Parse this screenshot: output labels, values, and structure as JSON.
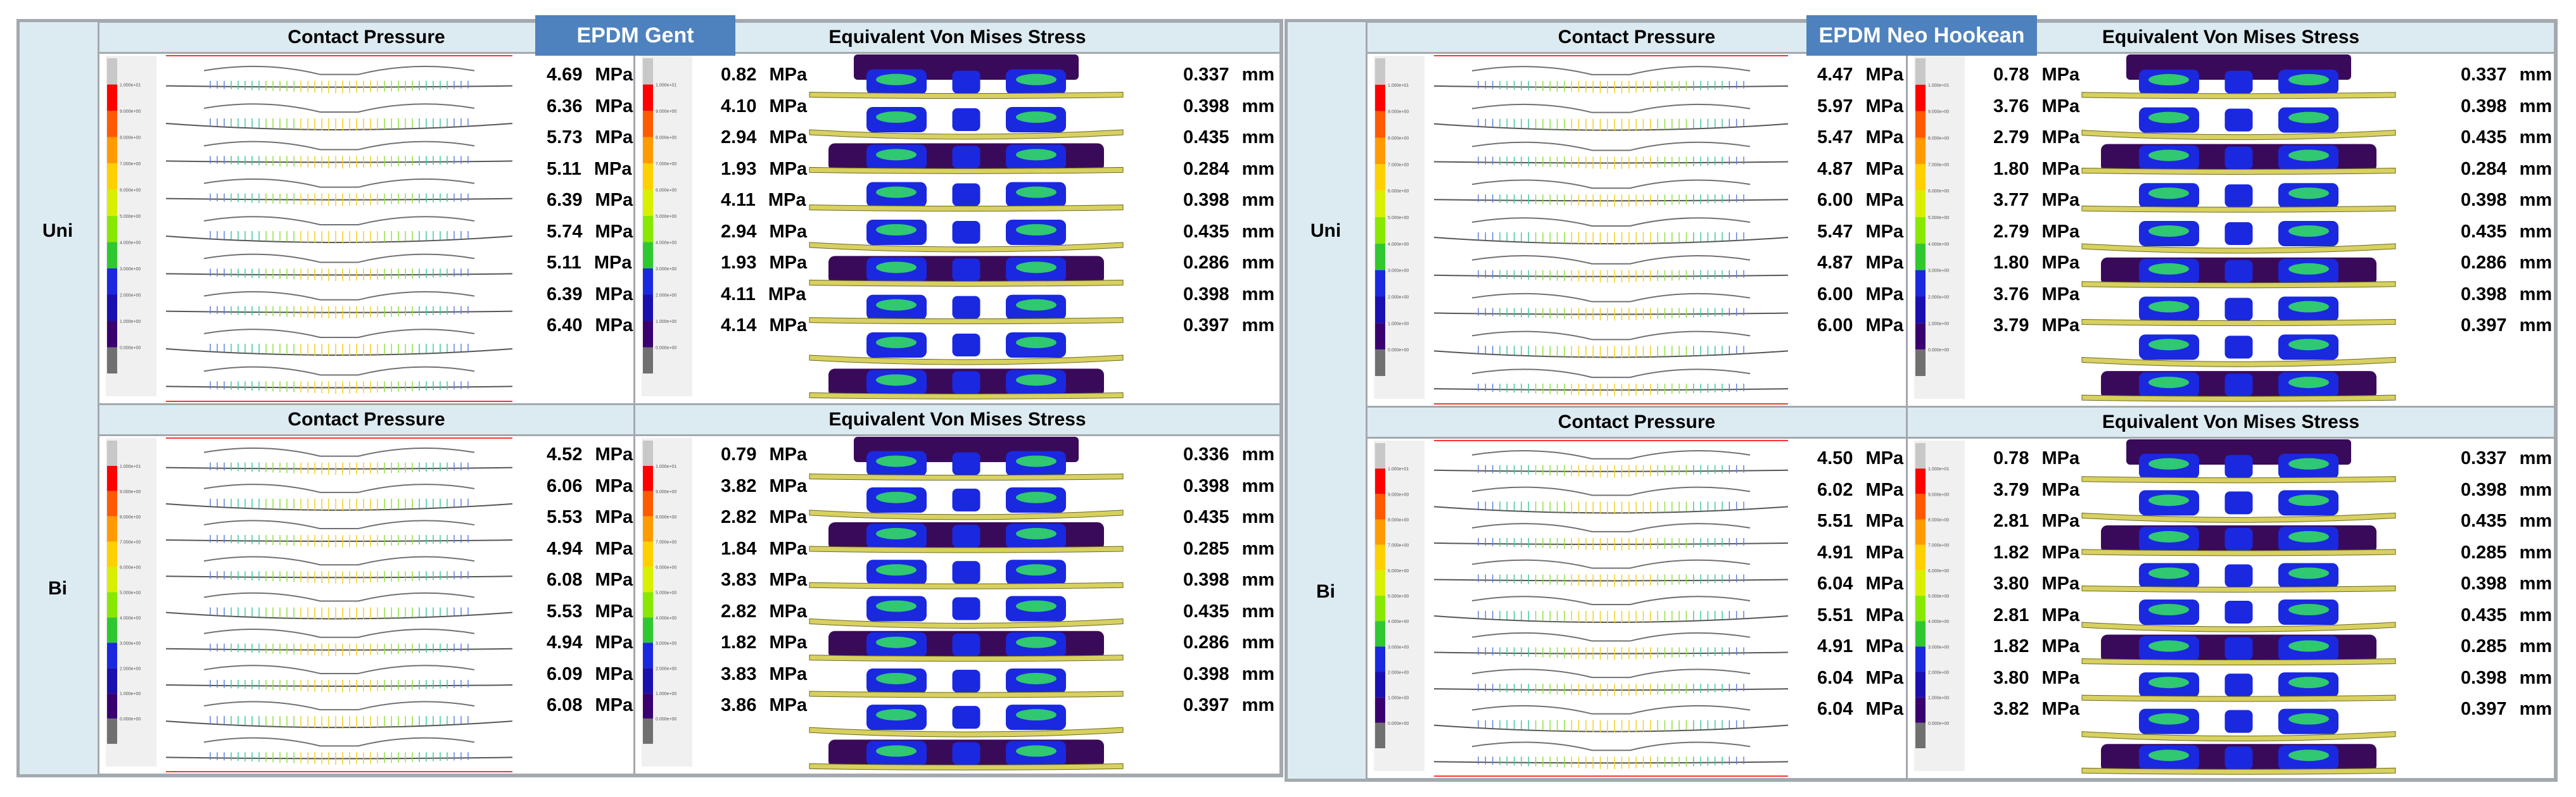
{
  "row_labels": [
    "Uni",
    "Bi"
  ],
  "panel_titles": {
    "contact": "Contact Pressure",
    "stress": "Equivalent Von  Mises Stress"
  },
  "units": {
    "pressure": "MPa",
    "displacement": "mm"
  },
  "legend_ticks": [
    "1.000e+01",
    "9.000e+00",
    "8.000e+00",
    "7.000e+00",
    "6.000e+00",
    "5.000e+00",
    "4.000e+00",
    "3.000e+00",
    "2.000e+00",
    "1.000e+00",
    "0.000e+00"
  ],
  "legend_colors": [
    "#ff0000",
    "#ff5a00",
    "#ff9a00",
    "#ffd000",
    "#d8f000",
    "#88e800",
    "#30c830",
    "#1a28e0",
    "#1a10b0",
    "#3a0070"
  ],
  "models": [
    {
      "name": "EPDM Gent",
      "rows": [
        {
          "case": "Uni",
          "contact": [
            "4.69",
            "6.36",
            "5.73",
            "5.11",
            "6.39",
            "5.74",
            "5.11",
            "6.39",
            "6.40"
          ],
          "stress": [
            "0.82",
            "4.10",
            "2.94",
            "1.93",
            "4.11",
            "2.94",
            "1.93",
            "4.11",
            "4.14"
          ],
          "displacement": [
            "0.337",
            "0.398",
            "0.435",
            "0.284",
            "0.398",
            "0.435",
            "0.286",
            "0.398",
            "0.397"
          ]
        },
        {
          "case": "Bi",
          "contact": [
            "4.52",
            "6.06",
            "5.53",
            "4.94",
            "6.08",
            "5.53",
            "4.94",
            "6.09",
            "6.08"
          ],
          "stress": [
            "0.79",
            "3.82",
            "2.82",
            "1.84",
            "3.83",
            "2.82",
            "1.82",
            "3.83",
            "3.86"
          ],
          "displacement": [
            "0.336",
            "0.398",
            "0.435",
            "0.285",
            "0.398",
            "0.435",
            "0.286",
            "0.398",
            "0.397"
          ]
        }
      ]
    },
    {
      "name": "EPDM Neo Hookean",
      "rows": [
        {
          "case": "Uni",
          "contact": [
            "4.47",
            "5.97",
            "5.47",
            "4.87",
            "6.00",
            "5.47",
            "4.87",
            "6.00",
            "6.00"
          ],
          "stress": [
            "0.78",
            "3.76",
            "2.79",
            "1.80",
            "3.77",
            "2.79",
            "1.80",
            "3.76",
            "3.79"
          ],
          "displacement": [
            "0.337",
            "0.398",
            "0.435",
            "0.284",
            "0.398",
            "0.435",
            "0.286",
            "0.398",
            "0.397"
          ]
        },
        {
          "case": "Bi",
          "contact": [
            "4.50",
            "6.02",
            "5.51",
            "4.91",
            "6.04",
            "5.51",
            "4.91",
            "6.04",
            "6.04"
          ],
          "stress": [
            "0.78",
            "3.79",
            "2.81",
            "1.82",
            "3.80",
            "2.81",
            "1.82",
            "3.80",
            "3.82"
          ],
          "displacement": [
            "0.337",
            "0.398",
            "0.435",
            "0.285",
            "0.398",
            "0.435",
            "0.285",
            "0.398",
            "0.397"
          ]
        }
      ]
    }
  ]
}
